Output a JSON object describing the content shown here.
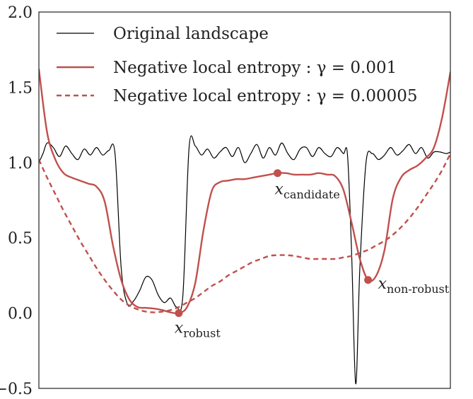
{
  "chart_data": {
    "type": "line",
    "title": "",
    "xlabel": "",
    "ylabel": "",
    "xlim": [
      0,
      1
    ],
    "ylim": [
      -0.5,
      2.0
    ],
    "x_ticks_shown": false,
    "y_ticks": [
      "2.0",
      "1.5",
      "1.0",
      "0.5",
      "0.0",
      "−0.5"
    ],
    "grid": false,
    "legend_position": "top-left",
    "series": [
      {
        "name": "Original landscape",
        "color": "#000000",
        "style": "solid",
        "x": [
          0.0,
          0.01,
          0.02,
          0.035,
          0.05,
          0.065,
          0.08,
          0.095,
          0.11,
          0.125,
          0.14,
          0.155,
          0.17,
          0.185,
          0.2,
          0.215,
          0.23,
          0.245,
          0.26,
          0.275,
          0.29,
          0.305,
          0.32,
          0.335,
          0.35,
          0.365,
          0.38,
          0.395,
          0.41,
          0.425,
          0.44,
          0.455,
          0.47,
          0.485,
          0.5,
          0.515,
          0.53,
          0.545,
          0.56,
          0.575,
          0.59,
          0.605,
          0.62,
          0.635,
          0.65,
          0.665,
          0.68,
          0.695,
          0.71,
          0.725,
          0.74,
          0.75,
          0.76,
          0.77,
          0.78,
          0.795,
          0.81,
          0.825,
          0.84,
          0.855,
          0.87,
          0.885,
          0.9,
          0.915,
          0.93,
          0.945,
          0.96,
          0.975,
          0.99,
          1.0
        ],
        "y": [
          1.0,
          1.06,
          1.13,
          1.1,
          1.04,
          1.11,
          1.06,
          1.02,
          1.09,
          1.05,
          1.1,
          1.05,
          1.08,
          1.06,
          0.3,
          0.06,
          0.08,
          0.15,
          0.24,
          0.22,
          0.12,
          0.07,
          0.1,
          0.04,
          0.12,
          1.1,
          1.11,
          1.05,
          1.09,
          1.03,
          1.07,
          1.1,
          1.04,
          1.1,
          1.0,
          1.06,
          1.12,
          1.03,
          1.1,
          1.05,
          1.13,
          1.06,
          1.02,
          1.09,
          1.1,
          1.04,
          1.1,
          1.06,
          1.04,
          1.1,
          1.06,
          1.05,
          0.4,
          -0.47,
          0.3,
          1.0,
          1.06,
          1.02,
          1.05,
          1.1,
          1.05,
          1.08,
          1.12,
          1.06,
          1.1,
          1.03,
          1.07,
          1.07,
          1.06,
          1.07
        ]
      },
      {
        "name": "Negative local entropy :  γ = 0.001",
        "color": "#c0504d",
        "style": "solid",
        "x": [
          0.0,
          0.02,
          0.04,
          0.06,
          0.08,
          0.1,
          0.12,
          0.14,
          0.16,
          0.18,
          0.2,
          0.22,
          0.24,
          0.26,
          0.28,
          0.3,
          0.32,
          0.34,
          0.36,
          0.38,
          0.4,
          0.42,
          0.44,
          0.46,
          0.48,
          0.5,
          0.52,
          0.54,
          0.56,
          0.58,
          0.6,
          0.62,
          0.64,
          0.66,
          0.68,
          0.7,
          0.72,
          0.74,
          0.76,
          0.78,
          0.8,
          0.82,
          0.84,
          0.86,
          0.88,
          0.9,
          0.92,
          0.94,
          0.96,
          0.98,
          1.0
        ],
        "y": [
          1.62,
          1.2,
          1.02,
          0.93,
          0.9,
          0.88,
          0.86,
          0.84,
          0.74,
          0.45,
          0.22,
          0.09,
          0.04,
          0.035,
          0.03,
          0.02,
          0.005,
          0.0,
          0.04,
          0.2,
          0.55,
          0.81,
          0.87,
          0.88,
          0.89,
          0.89,
          0.9,
          0.91,
          0.92,
          0.93,
          0.93,
          0.92,
          0.92,
          0.92,
          0.93,
          0.92,
          0.91,
          0.82,
          0.6,
          0.36,
          0.22,
          0.25,
          0.42,
          0.76,
          0.9,
          0.95,
          0.98,
          1.03,
          1.1,
          1.3,
          1.6
        ]
      },
      {
        "name": "Negative local entropy :  γ = 0.00005",
        "color": "#c0504d",
        "style": "dashed",
        "x": [
          0.0,
          0.02,
          0.04,
          0.06,
          0.08,
          0.1,
          0.12,
          0.14,
          0.16,
          0.18,
          0.2,
          0.22,
          0.24,
          0.26,
          0.28,
          0.3,
          0.32,
          0.34,
          0.36,
          0.38,
          0.4,
          0.42,
          0.44,
          0.46,
          0.48,
          0.5,
          0.52,
          0.54,
          0.56,
          0.58,
          0.6,
          0.62,
          0.64,
          0.66,
          0.68,
          0.7,
          0.72,
          0.74,
          0.76,
          0.78,
          0.8,
          0.82,
          0.84,
          0.86,
          0.88,
          0.9,
          0.92,
          0.94,
          0.96,
          0.98,
          1.0
        ],
        "y": [
          1.02,
          0.9,
          0.79,
          0.68,
          0.58,
          0.48,
          0.39,
          0.3,
          0.22,
          0.15,
          0.09,
          0.05,
          0.025,
          0.01,
          0.005,
          0.01,
          0.02,
          0.04,
          0.07,
          0.1,
          0.14,
          0.18,
          0.21,
          0.25,
          0.28,
          0.31,
          0.34,
          0.36,
          0.38,
          0.385,
          0.385,
          0.38,
          0.37,
          0.36,
          0.36,
          0.36,
          0.36,
          0.37,
          0.38,
          0.4,
          0.42,
          0.45,
          0.48,
          0.52,
          0.57,
          0.63,
          0.7,
          0.78,
          0.86,
          0.95,
          1.06
        ]
      }
    ],
    "points": [
      {
        "x": 0.34,
        "y": 0.0,
        "color": "#c0504d",
        "label_main": "x",
        "label_sub": "robust"
      },
      {
        "x": 0.58,
        "y": 0.93,
        "color": "#c0504d",
        "label_main": "x",
        "label_sub": "candidate"
      },
      {
        "x": 0.8,
        "y": 0.22,
        "color": "#c0504d",
        "label_main": "x",
        "label_sub": "non-robust"
      }
    ]
  }
}
